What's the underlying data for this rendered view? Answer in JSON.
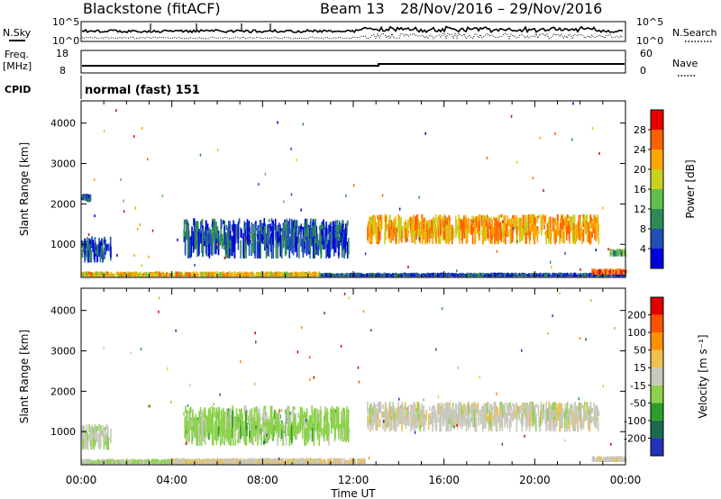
{
  "header": {
    "radar": "Blackstone (fitACF)",
    "beam": "Beam 13",
    "dates": "28/Nov/2016 – 29/Nov/2016"
  },
  "top_panels": {
    "nsky_label": "N.Sky",
    "nsearch_label": "N.Search",
    "freq_label_line1": "Freq.",
    "freq_label_line2": "[MHz]",
    "nave_label": "Nave",
    "cpid_label": "CPID",
    "cpid_text": "normal (fast) 151",
    "noise_ticks_left": [
      "10^5",
      "10^0"
    ],
    "noise_ticks_right": [
      "10^5",
      "10^0"
    ],
    "freq_ticks": [
      "18",
      "8"
    ],
    "nave_ticks": [
      "60",
      "0"
    ]
  },
  "power_colorbar": {
    "label": "Power [dB]",
    "ticks": [
      "28",
      "24",
      "20",
      "16",
      "12",
      "8",
      "4"
    ],
    "colors": [
      "#0000dd",
      "#1f4fb4",
      "#2e8b57",
      "#5fbf4f",
      "#c8d21e",
      "#ffa500",
      "#ff6000",
      "#e80000"
    ]
  },
  "velocity_colorbar": {
    "label": "Velocity [m s⁻¹]",
    "ticks": [
      "200",
      "100",
      "50",
      "15",
      "-15",
      "-50",
      "-100",
      "-200"
    ],
    "colors": [
      "#2233bb",
      "#1c6a4c",
      "#2c9d2c",
      "#8cd24a",
      "#c8c8c0",
      "#f0c050",
      "#ff9000",
      "#ff5000",
      "#e00000"
    ]
  },
  "chart_data": {
    "type": "heatmap",
    "title": "Blackstone (fitACF) Beam 13 28/Nov/2016 – 29/Nov/2016",
    "xlabel": "Time UT",
    "ylabel": "Slant Range [km]",
    "x_tick_labels": [
      "00:00",
      "04:00",
      "08:00",
      "12:00",
      "16:00",
      "20:00",
      "00:00"
    ],
    "x_range_hours": [
      0,
      24
    ],
    "y_tick_labels": [
      "1000",
      "2000",
      "3000",
      "4000"
    ],
    "ylim": [
      180,
      4550
    ],
    "panels": [
      {
        "name": "Power",
        "unit": "dB",
        "range": [
          0,
          32
        ],
        "regions": [
          {
            "t": [
              0.0,
              1.3
            ],
            "r": [
              550,
              1200
            ],
            "value": 6
          },
          {
            "t": [
              0.0,
              0.4
            ],
            "r": [
              2050,
              2250
            ],
            "value": 6
          },
          {
            "t": [
              4.5,
              11.8
            ],
            "r": [
              650,
              1650
            ],
            "value": 6
          },
          {
            "t": [
              0.0,
              10.5
            ],
            "r": [
              200,
              330
            ],
            "value": 20
          },
          {
            "t": [
              10.5,
              24.0
            ],
            "r": [
              200,
              300
            ],
            "value": 6
          },
          {
            "t": [
              12.6,
              22.8
            ],
            "r": [
              1000,
              1750
            ],
            "value": 22
          },
          {
            "t": [
              22.5,
              24.0
            ],
            "r": [
              250,
              400
            ],
            "value": 26
          },
          {
            "t": [
              23.3,
              24.0
            ],
            "r": [
              700,
              900
            ],
            "value": 12
          }
        ]
      },
      {
        "name": "Velocity",
        "unit": "m s-1",
        "range": [
          -250,
          250
        ],
        "regions": [
          {
            "t": [
              0.0,
              1.3
            ],
            "r": [
              550,
              1200
            ],
            "value": -20
          },
          {
            "t": [
              4.5,
              11.8
            ],
            "r": [
              650,
              1650
            ],
            "value": -50
          },
          {
            "t": [
              0.0,
              10.5
            ],
            "r": [
              200,
              330
            ],
            "value": -40
          },
          {
            "t": [
              4.0,
              12.5
            ],
            "r": [
              200,
              350
            ],
            "value": 20
          },
          {
            "t": [
              12.6,
              22.8
            ],
            "r": [
              1000,
              1750
            ],
            "value": 0
          },
          {
            "t": [
              22.5,
              24.0
            ],
            "r": [
              250,
              400
            ],
            "value": 0
          }
        ]
      }
    ]
  }
}
